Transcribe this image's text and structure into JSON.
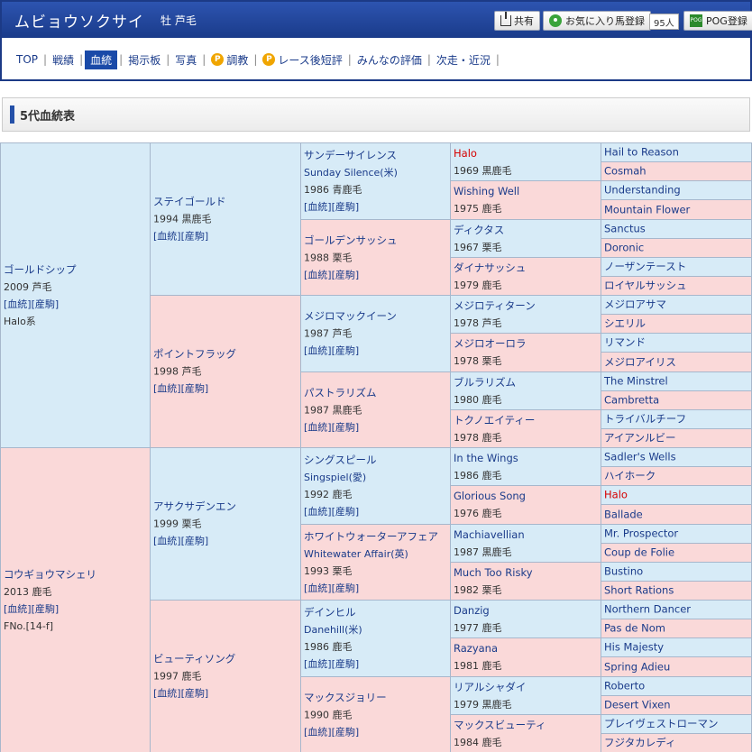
{
  "header": {
    "horse_name": "ムビョウソクサイ",
    "horse_meta": "牡 芦毛",
    "share_label": "共有",
    "fav_label": "お気に入り馬登録",
    "fav_count": "95人",
    "pog_label": "POG登録",
    "pog_icon_text": "POG"
  },
  "nav": {
    "items": [
      {
        "label": "TOP"
      },
      {
        "label": "戦績"
      },
      {
        "label": "血統",
        "active": true
      },
      {
        "label": "掲示板"
      },
      {
        "label": "写真"
      },
      {
        "label": "調教",
        "icon": "P"
      },
      {
        "label": "レース後短評",
        "icon": "P"
      },
      {
        "label": "みんなの評価"
      },
      {
        "label": "次走・近況"
      }
    ]
  },
  "section": {
    "title": "5代血統表"
  },
  "links": {
    "pedigree": "[血統]",
    "produce": "[産駒]"
  },
  "pedigree": {
    "g1": [
      {
        "name": "ゴールドシップ",
        "year": "2009 芦毛",
        "extra": "Halo系",
        "sex": "m"
      },
      {
        "name": "コウギョウマシェリ",
        "year": "2013 鹿毛",
        "extra": "FNo.[14-f]",
        "sex": "f"
      }
    ],
    "g2": [
      {
        "name": "ステイゴールド",
        "year": "1994 黒鹿毛",
        "sex": "m"
      },
      {
        "name": "ポイントフラッグ",
        "year": "1998 芦毛",
        "sex": "f"
      },
      {
        "name": "アサクサデンエン",
        "year": "1999 栗毛",
        "sex": "m"
      },
      {
        "name": "ビューティソング",
        "year": "1997 鹿毛",
        "sex": "f"
      }
    ],
    "g3": [
      {
        "name": "サンデーサイレンス",
        "sub": "Sunday Silence(米)",
        "year": "1986 青鹿毛",
        "sex": "m"
      },
      {
        "name": "ゴールデンサッシュ",
        "year": "1988 栗毛",
        "sex": "f"
      },
      {
        "name": "メジロマックイーン",
        "year": "1987 芦毛",
        "sex": "m"
      },
      {
        "name": "パストラリズム",
        "year": "1987 黒鹿毛",
        "sex": "f"
      },
      {
        "name": "シングスピール",
        "sub": "Singspiel(愛)",
        "year": "1992 鹿毛",
        "sex": "m"
      },
      {
        "name": "ホワイトウォーターアフェア",
        "sub": "Whitewater Affair(英)",
        "year": "1993 栗毛",
        "sex": "f"
      },
      {
        "name": "デインヒル",
        "sub": "Danehill(米)",
        "year": "1986 鹿毛",
        "sex": "m"
      },
      {
        "name": "マックスジョリー",
        "year": "1990 鹿毛",
        "sex": "f"
      }
    ],
    "g4": [
      {
        "name": "Halo",
        "year": "1969 黒鹿毛",
        "sex": "m",
        "red": true
      },
      {
        "name": "Wishing Well",
        "year": "1975 鹿毛",
        "sex": "f"
      },
      {
        "name": "ディクタス",
        "year": "1967 栗毛",
        "sex": "m"
      },
      {
        "name": "ダイナサッシュ",
        "year": "1979 鹿毛",
        "sex": "f"
      },
      {
        "name": "メジロティターン",
        "year": "1978 芦毛",
        "sex": "m"
      },
      {
        "name": "メジロオーロラ",
        "year": "1978 栗毛",
        "sex": "f"
      },
      {
        "name": "ブルラリズム",
        "year": "1980 鹿毛",
        "sex": "m"
      },
      {
        "name": "トクノエイティー",
        "year": "1978 鹿毛",
        "sex": "f"
      },
      {
        "name": "In the Wings",
        "year": "1986 鹿毛",
        "sex": "m"
      },
      {
        "name": "Glorious Song",
        "year": "1976 鹿毛",
        "sex": "f"
      },
      {
        "name": "Machiavellian",
        "year": "1987 黒鹿毛",
        "sex": "m"
      },
      {
        "name": "Much Too Risky",
        "year": "1982 栗毛",
        "sex": "f"
      },
      {
        "name": "Danzig",
        "year": "1977 鹿毛",
        "sex": "m"
      },
      {
        "name": "Razyana",
        "year": "1981 鹿毛",
        "sex": "f"
      },
      {
        "name": "リアルシャダイ",
        "year": "1979 黒鹿毛",
        "sex": "m"
      },
      {
        "name": "マックスビューティ",
        "year": "1984 鹿毛",
        "sex": "f"
      }
    ],
    "g5": [
      {
        "name": "Hail to Reason",
        "sex": "m"
      },
      {
        "name": "Cosmah",
        "sex": "f"
      },
      {
        "name": "Understanding",
        "sex": "m"
      },
      {
        "name": "Mountain Flower",
        "sex": "f"
      },
      {
        "name": "Sanctus",
        "sex": "m"
      },
      {
        "name": "Doronic",
        "sex": "f"
      },
      {
        "name": "ノーザンテースト",
        "sex": "m"
      },
      {
        "name": "ロイヤルサッシュ",
        "sex": "f"
      },
      {
        "name": "メジロアサマ",
        "sex": "m"
      },
      {
        "name": "シエリル",
        "sex": "f"
      },
      {
        "name": "リマンド",
        "sex": "m"
      },
      {
        "name": "メジロアイリス",
        "sex": "f"
      },
      {
        "name": "The Minstrel",
        "sex": "m"
      },
      {
        "name": "Cambretta",
        "sex": "f"
      },
      {
        "name": "トライバルチーフ",
        "sex": "m"
      },
      {
        "name": "アイアンルビー",
        "sex": "f"
      },
      {
        "name": "Sadler's Wells",
        "sex": "m"
      },
      {
        "name": "ハイホーク",
        "sex": "f"
      },
      {
        "name": "Halo",
        "sex": "m",
        "red": true
      },
      {
        "name": "Ballade",
        "sex": "f"
      },
      {
        "name": "Mr. Prospector",
        "sex": "m"
      },
      {
        "name": "Coup de Folie",
        "sex": "f"
      },
      {
        "name": "Bustino",
        "sex": "m"
      },
      {
        "name": "Short Rations",
        "sex": "f"
      },
      {
        "name": "Northern Dancer",
        "sex": "m"
      },
      {
        "name": "Pas de Nom",
        "sex": "f"
      },
      {
        "name": "His Majesty",
        "sex": "m"
      },
      {
        "name": "Spring Adieu",
        "sex": "f"
      },
      {
        "name": "Roberto",
        "sex": "m"
      },
      {
        "name": "Desert Vixen",
        "sex": "f"
      },
      {
        "name": "プレイヴェストローマン",
        "sex": "m"
      },
      {
        "name": "フジタカレディ",
        "sex": "f"
      }
    ]
  }
}
